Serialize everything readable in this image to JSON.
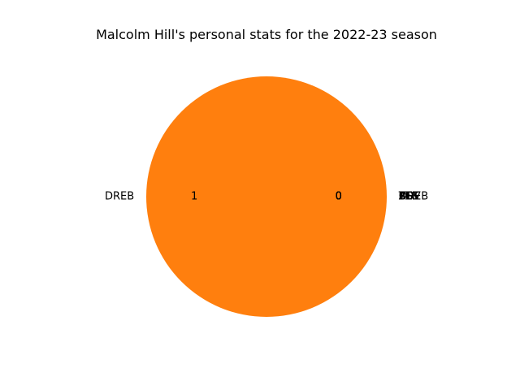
{
  "chart_data": {
    "type": "pie",
    "title": "Malcolm Hill's personal stats for the 2022-23 season",
    "categories": [
      "OREB",
      "DREB",
      "AST",
      "STL",
      "BLK",
      "TOV",
      "PF",
      "PTS"
    ],
    "values": [
      0,
      1,
      0,
      0,
      0,
      0,
      0,
      0
    ],
    "data_labels": [
      "0",
      "1",
      "0",
      "0",
      "0",
      "0",
      "0",
      "0"
    ],
    "colors": [
      "#1f77b4",
      "#ff7f0e",
      "#2ca02c",
      "#d62728",
      "#9467bd",
      "#8c564b",
      "#e377c2",
      "#7f7f7f"
    ],
    "legend": "none"
  }
}
